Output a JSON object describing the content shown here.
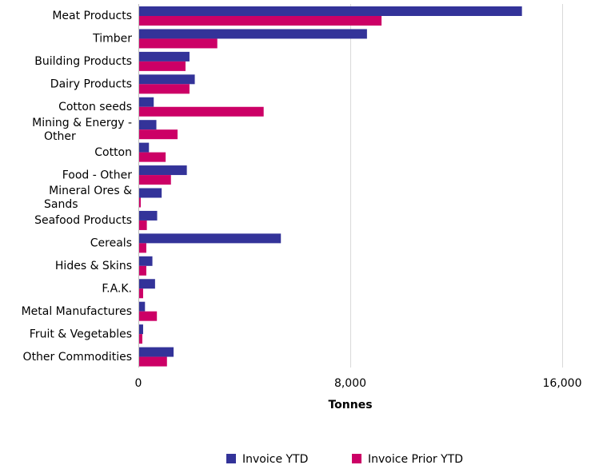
{
  "chart_data": {
    "type": "bar",
    "orientation": "horizontal",
    "categories": [
      "Meat Products",
      "Timber",
      "Building Products",
      "Dairy Products",
      "Cotton seeds",
      "Mining & Energy - Other",
      "Cotton",
      "Food - Other",
      "Mineral Ores & Sands",
      "Seafood Products",
      "Cereals",
      "Hides & Skins",
      "F.A.K.",
      "Metal Manufactures",
      "Fruit & Vegetables",
      "Other Commodities"
    ],
    "series": [
      {
        "name": "Invoice YTD",
        "color": "#333399",
        "values": [
          14450,
          8600,
          1900,
          2100,
          550,
          650,
          370,
          1800,
          850,
          680,
          5350,
          500,
          600,
          220,
          150,
          1300
        ]
      },
      {
        "name": "Invoice Prior YTD",
        "color": "#cc0066",
        "values": [
          9150,
          2950,
          1750,
          1900,
          4700,
          1450,
          1000,
          1200,
          60,
          290,
          270,
          270,
          150,
          670,
          120,
          1050
        ]
      }
    ],
    "xlabel": "Tonnes",
    "xlim": [
      0,
      16000
    ],
    "xticks": [
      0,
      8000,
      16000
    ],
    "xtick_labels": [
      "0",
      "8,000",
      "16,000"
    ],
    "grid": true,
    "legend_position": "bottom"
  }
}
